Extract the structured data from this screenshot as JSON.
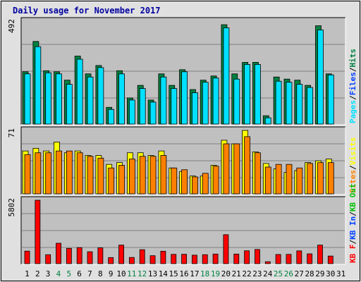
{
  "title": "Daily usage for November 2017",
  "chart_data": [
    {
      "type": "bar",
      "panel": "hits",
      "max_label": "492",
      "ylim": [
        0,
        492
      ],
      "categories": [
        "1",
        "2",
        "3",
        "4",
        "5",
        "6",
        "7",
        "8",
        "9",
        "10",
        "11",
        "12",
        "13",
        "14",
        "15",
        "16",
        "17",
        "18",
        "19",
        "20",
        "21",
        "22",
        "23",
        "24",
        "25",
        "26",
        "27",
        "28",
        "29",
        "30",
        "31"
      ],
      "weekend_days": [
        "4",
        "5",
        "11",
        "12",
        "18",
        "19",
        "25",
        "26"
      ],
      "series": [
        {
          "name": "Hits",
          "color": "#008040",
          "values": [
            250,
            395,
            255,
            250,
            210,
            325,
            240,
            280,
            80,
            255,
            125,
            185,
            115,
            240,
            185,
            260,
            165,
            210,
            230,
            475,
            240,
            295,
            295,
            40,
            225,
            215,
            210,
            185,
            470,
            240,
            null
          ]
        },
        {
          "name": "Files",
          "color": "#0040ff",
          "values": [
            null,
            null,
            null,
            null,
            null,
            null,
            null,
            null,
            null,
            null,
            null,
            null,
            null,
            null,
            null,
            null,
            null,
            null,
            null,
            null,
            null,
            null,
            null,
            null,
            null,
            null,
            null,
            null,
            null,
            null,
            null
          ]
        },
        {
          "name": "Pages",
          "color": "#00e0ff",
          "values": [
            240,
            370,
            245,
            240,
            190,
            310,
            225,
            270,
            70,
            240,
            115,
            170,
            105,
            225,
            170,
            250,
            150,
            200,
            220,
            460,
            215,
            285,
            285,
            30,
            205,
            200,
            190,
            175,
            450,
            235,
            null
          ]
        }
      ],
      "legend": [
        "Pages",
        "/",
        "Files",
        "/",
        "Hits"
      ]
    },
    {
      "type": "bar",
      "panel": "visits",
      "max_label": "71",
      "ylim": [
        0,
        71
      ],
      "categories": [
        "1",
        "2",
        "3",
        "4",
        "5",
        "6",
        "7",
        "8",
        "9",
        "10",
        "11",
        "12",
        "13",
        "14",
        "15",
        "16",
        "17",
        "18",
        "19",
        "20",
        "21",
        "22",
        "23",
        "24",
        "25",
        "26",
        "27",
        "28",
        "29",
        "30",
        "31"
      ],
      "series": [
        {
          "name": "Visits",
          "color": "#ffff00",
          "values": [
            48,
            51,
            48,
            58,
            46,
            48,
            43,
            43,
            33,
            35,
            46,
            46,
            43,
            48,
            29,
            25,
            20,
            20,
            32,
            60,
            56,
            71,
            47,
            34,
            28,
            24,
            26,
            35,
            37,
            39,
            null
          ]
        },
        {
          "name": "Sites",
          "color": "#ff8000",
          "values": [
            44,
            46,
            46,
            48,
            48,
            46,
            42,
            40,
            29,
            32,
            39,
            42,
            42,
            43,
            29,
            27,
            19,
            23,
            31,
            56,
            56,
            64,
            46,
            30,
            33,
            33,
            29,
            34,
            35,
            35,
            null
          ]
        }
      ],
      "legend": [
        "Sites",
        "/",
        "Visits"
      ]
    },
    {
      "type": "bar",
      "panel": "kbytes",
      "max_label": "5802",
      "ylim": [
        0,
        5802
      ],
      "categories": [
        "1",
        "2",
        "3",
        "4",
        "5",
        "6",
        "7",
        "8",
        "9",
        "10",
        "11",
        "12",
        "13",
        "14",
        "15",
        "16",
        "17",
        "18",
        "19",
        "20",
        "21",
        "22",
        "23",
        "24",
        "25",
        "26",
        "27",
        "28",
        "29",
        "30",
        "31"
      ],
      "series": [
        {
          "name": "KB F",
          "color": "#ff0000",
          "values": [
            1150,
            5802,
            820,
            1870,
            1400,
            1470,
            1090,
            1450,
            560,
            1700,
            570,
            1280,
            730,
            1140,
            850,
            860,
            780,
            820,
            880,
            2650,
            880,
            1180,
            1300,
            180,
            840,
            850,
            1170,
            900,
            1700,
            700,
            null
          ]
        },
        {
          "name": "KB In",
          "color": "#0040ff",
          "values": [
            null,
            null,
            null,
            null,
            null,
            null,
            null,
            null,
            null,
            null,
            null,
            null,
            null,
            null,
            null,
            null,
            null,
            null,
            null,
            null,
            null,
            null,
            null,
            null,
            null,
            null,
            null,
            null,
            null,
            null,
            null
          ]
        },
        {
          "name": "KB Out",
          "color": "#00c000",
          "values": [
            null,
            null,
            null,
            null,
            null,
            null,
            null,
            null,
            null,
            null,
            null,
            null,
            null,
            null,
            null,
            null,
            null,
            null,
            null,
            null,
            null,
            null,
            null,
            null,
            null,
            null,
            null,
            null,
            null,
            null,
            null
          ]
        }
      ],
      "legend": [
        "KB F",
        "/",
        "KB In",
        "/",
        "KB Out"
      ]
    }
  ]
}
